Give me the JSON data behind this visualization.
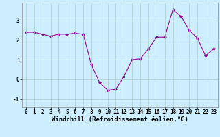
{
  "x": [
    0,
    1,
    2,
    3,
    4,
    5,
    6,
    7,
    8,
    9,
    10,
    11,
    12,
    13,
    14,
    15,
    16,
    17,
    18,
    19,
    20,
    21,
    22,
    23
  ],
  "y": [
    2.4,
    2.4,
    2.3,
    2.2,
    2.3,
    2.3,
    2.35,
    2.3,
    0.75,
    -0.15,
    -0.55,
    -0.5,
    0.15,
    1.0,
    1.05,
    1.55,
    2.15,
    2.15,
    3.55,
    3.2,
    2.5,
    2.1,
    1.2,
    1.55
  ],
  "line_color": "#990099",
  "marker": "D",
  "marker_size": 2,
  "xlabel": "Windchill (Refroidissement éolien,°C)",
  "xlim": [
    -0.5,
    23.5
  ],
  "ylim": [
    -1.4,
    3.9
  ],
  "yticks": [
    -1,
    0,
    1,
    2,
    3
  ],
  "xticks": [
    0,
    1,
    2,
    3,
    4,
    5,
    6,
    7,
    8,
    9,
    10,
    11,
    12,
    13,
    14,
    15,
    16,
    17,
    18,
    19,
    20,
    21,
    22,
    23
  ],
  "bg_color": "#cceeff",
  "grid_color": "#aacccc",
  "label_fontsize": 6.5,
  "tick_fontsize": 5.5
}
